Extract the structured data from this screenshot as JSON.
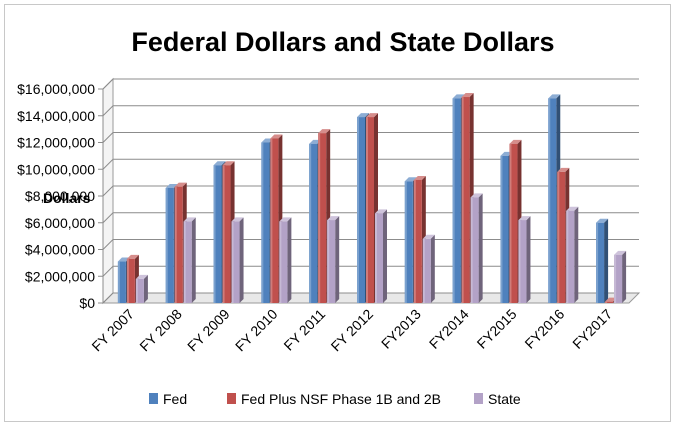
{
  "chart_data": {
    "type": "bar",
    "title": "Federal Dollars and State Dollars",
    "ylabel": "Dollars",
    "xlabel": "",
    "categories": [
      "FY 2007",
      "FY 2008",
      "FY 2009",
      "FY 2010",
      "FY 2011",
      "FY 2012",
      "FY2013",
      "FY2014",
      "FY2015",
      "FY2016",
      "FY2017"
    ],
    "series": [
      {
        "name": "Fed",
        "color": "#4f81bd",
        "values": [
          3100000,
          8600000,
          10300000,
          12000000,
          11900000,
          13900000,
          9100000,
          15300000,
          11000000,
          15300000,
          6000000
        ]
      },
      {
        "name": "Fed Plus NSF Phase 1B and 2B",
        "color": "#c0504d",
        "values": [
          3300000,
          8700000,
          10300000,
          12300000,
          12700000,
          13900000,
          9200000,
          15400000,
          11900000,
          9800000,
          100000
        ]
      },
      {
        "name": "State",
        "color": "#b3a2c7",
        "values": [
          1800000,
          6100000,
          6100000,
          6100000,
          6200000,
          6700000,
          4800000,
          7900000,
          6200000,
          6900000,
          3600000
        ]
      }
    ],
    "ylim": [
      0,
      16000000
    ],
    "yticks": [
      "$0",
      "$2,000,000",
      "$4,000,000",
      "$6,000,000",
      "$8,000,000",
      "$10,000,000",
      "$12,000,000",
      "$14,000,000",
      "$16,000,000"
    ],
    "ytick_values": [
      0,
      2000000,
      4000000,
      6000000,
      8000000,
      10000000,
      12000000,
      14000000,
      16000000
    ],
    "grid": true,
    "legend": "bottom",
    "style": "3d-clustered-column"
  }
}
